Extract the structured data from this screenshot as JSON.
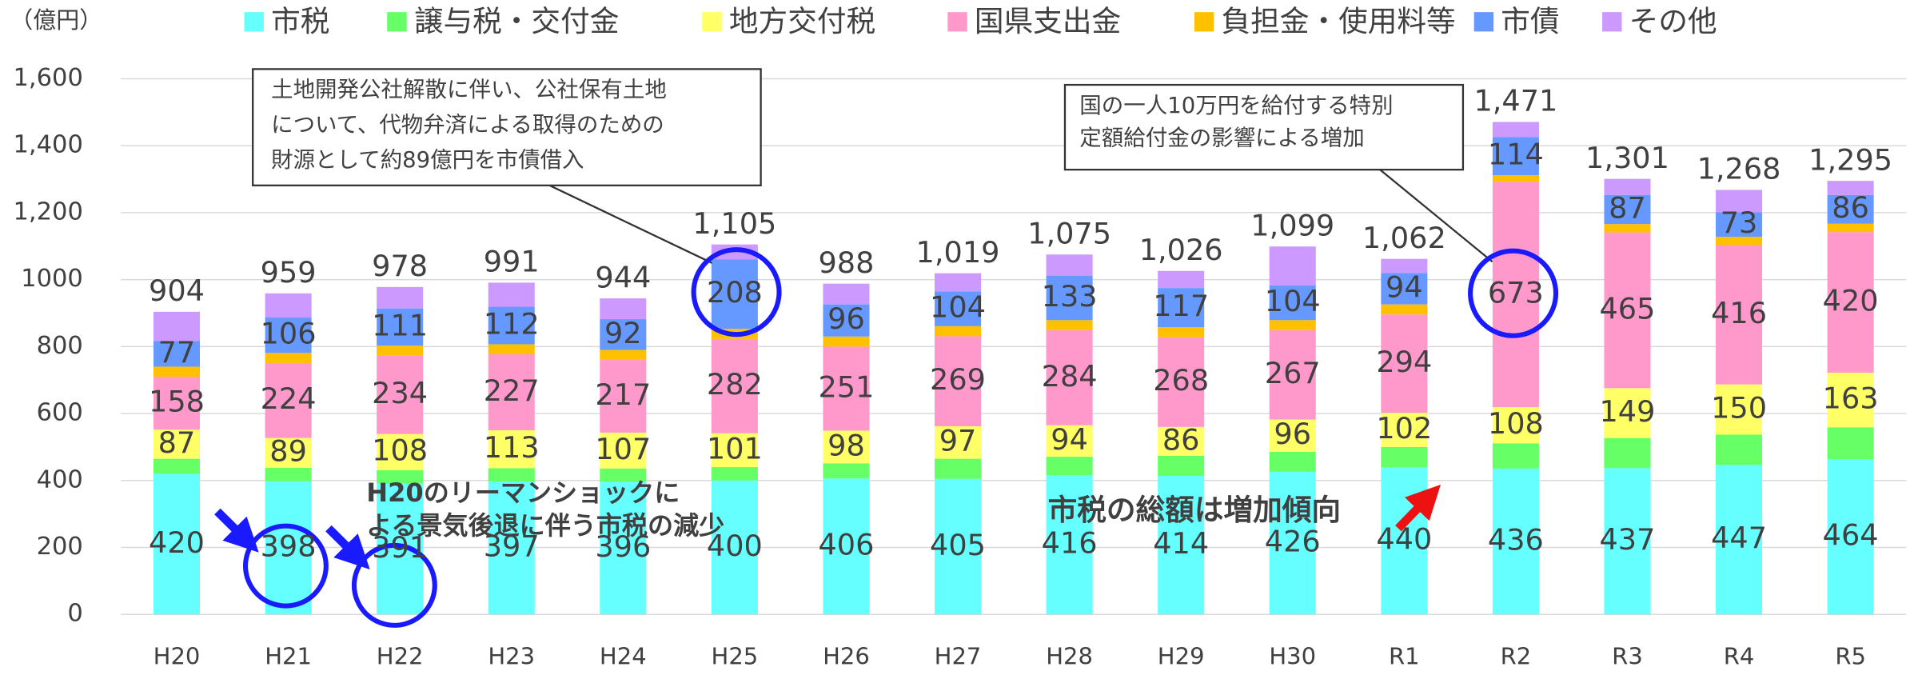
{
  "chart_data": {
    "type": "stacked_bar",
    "y_unit": "（億円）",
    "categories": [
      "H20",
      "H21",
      "H22",
      "H23",
      "H24",
      "H25",
      "H26",
      "H27",
      "H28",
      "H29",
      "H30",
      "R1",
      "R2",
      "R3",
      "R4",
      "R5"
    ],
    "series": [
      {
        "name": "市税",
        "color": "#66ffff",
        "show_labels": true,
        "values": [
          420,
          398,
          391,
          397,
          396,
          400,
          406,
          405,
          416,
          414,
          426,
          440,
          436,
          437,
          447,
          464
        ]
      },
      {
        "name": "譲与税・交付金",
        "color": "#66ff66",
        "show_labels": false,
        "values": [
          45,
          40,
          40,
          40,
          40,
          40,
          45,
          60,
          55,
          60,
          60,
          60,
          75,
          90,
          90,
          95
        ]
      },
      {
        "name": "地方交付税",
        "color": "#ffff66",
        "show_labels": true,
        "values": [
          87,
          89,
          108,
          113,
          107,
          101,
          98,
          97,
          94,
          86,
          96,
          102,
          108,
          149,
          150,
          163
        ]
      },
      {
        "name": "国県支出金",
        "color": "#ff99cc",
        "show_labels": true,
        "values": [
          158,
          224,
          234,
          227,
          217,
          282,
          251,
          269,
          284,
          268,
          267,
          294,
          673,
          465,
          416,
          420
        ]
      },
      {
        "name": "負担金・使用料等",
        "color": "#ffc000",
        "show_labels": false,
        "values": [
          30,
          30,
          30,
          30,
          30,
          30,
          30,
          30,
          30,
          30,
          30,
          30,
          20,
          25,
          25,
          25
        ]
      },
      {
        "name": "市債",
        "color": "#6699ff",
        "show_labels": true,
        "values": [
          77,
          106,
          111,
          112,
          92,
          208,
          96,
          104,
          133,
          117,
          104,
          94,
          114,
          87,
          73,
          86
        ]
      },
      {
        "name": "その他",
        "color": "#cc99ff",
        "show_labels": false,
        "values": [
          87,
          72,
          64,
          72,
          62,
          44,
          62,
          54,
          63,
          51,
          116,
          42,
          45,
          48,
          67,
          42
        ]
      }
    ],
    "totals": {
      "values": [
        904,
        959,
        978,
        991,
        944,
        1105,
        988,
        1019,
        1075,
        1026,
        1099,
        1062,
        1471,
        1301,
        1268,
        1295
      ],
      "value_labels": [
        "904",
        "959",
        "978",
        "991",
        "944",
        "1,105",
        "988",
        "1,019",
        "1,075",
        "1,026",
        "1,099",
        "1,062",
        "1,471",
        "1,301",
        "1,268",
        "1,295"
      ]
    },
    "ylim": [
      0,
      1600
    ],
    "yticks": [
      0,
      200,
      400,
      600,
      800,
      1000,
      {
        "value": 1200,
        "label": "1,200"
      },
      {
        "value": 1400,
        "label": "1,400"
      },
      {
        "value": 1600,
        "label": "1,600"
      }
    ],
    "grid": true,
    "legend": "top",
    "annotations": [
      {
        "lines": [
          "土地開発公社解散に伴い、公社保有土地",
          "について、代物弁済による取得のための",
          "財源として約89億円を市債借入"
        ]
      },
      {
        "lines": [
          "国の一人10万円を給付する特別",
          "定額給付金の影響による増加"
        ]
      },
      {
        "lines": [
          "H20のリーマンショックに",
          "よる景気後退に伴う市税の減少"
        ]
      },
      {
        "lines": [
          "市税の総額は増加傾向"
        ]
      }
    ]
  }
}
